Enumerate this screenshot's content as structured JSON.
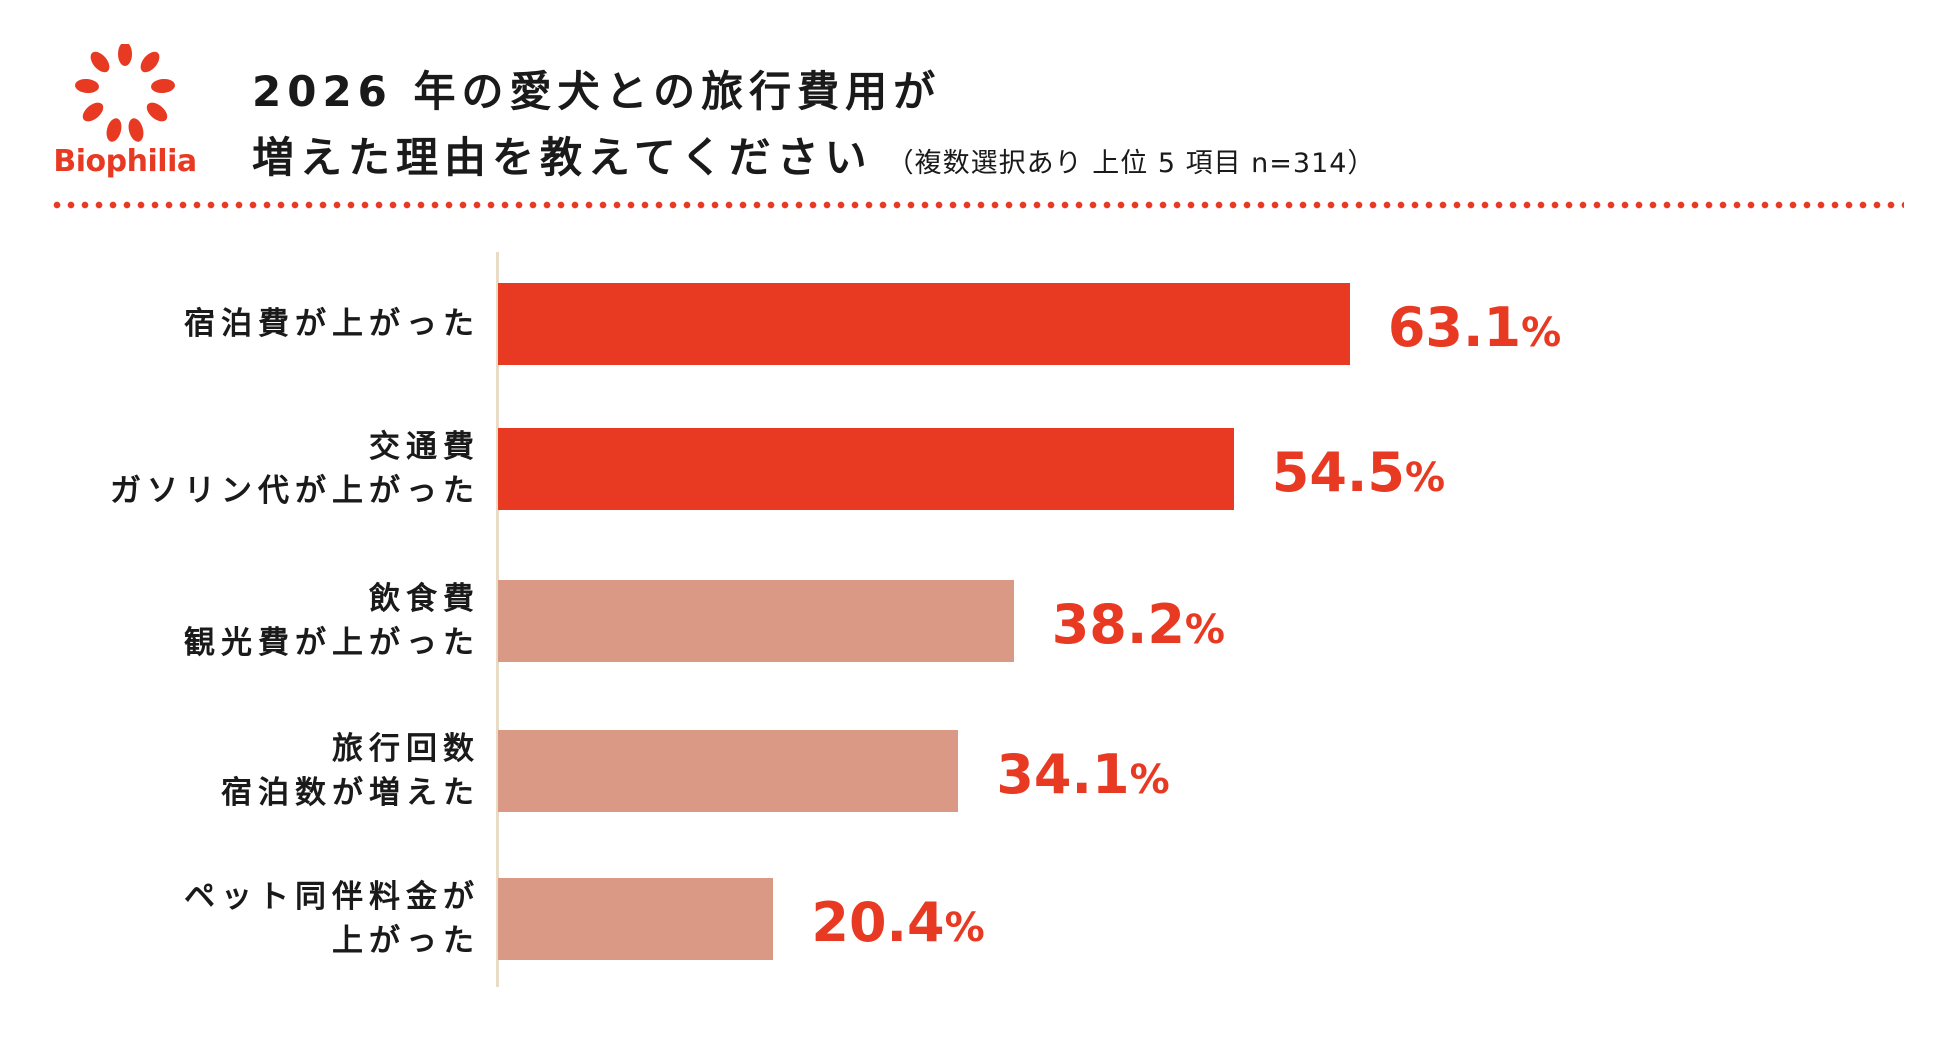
{
  "logo": {
    "text": "Biophilia",
    "color": "#e83a23"
  },
  "title": {
    "line1": "2026 年の愛犬との旅行費用が",
    "line2": "増えた理由を教えてください",
    "subtitle": "（複数選択あり 上位 5 項目 n=314）"
  },
  "chart_data": {
    "type": "bar",
    "orientation": "horizontal",
    "categories": [
      [
        "宿泊費が上がった"
      ],
      [
        "交通費",
        "ガソリン代が上がった"
      ],
      [
        "飲食費",
        "観光費が上がった"
      ],
      [
        "旅行回数",
        "宿泊数が増えた"
      ],
      [
        "ペット同伴料金が",
        "上がった"
      ]
    ],
    "values": [
      63.1,
      54.5,
      38.2,
      34.1,
      20.4
    ],
    "value_labels": [
      "63.1",
      "54.5",
      "38.2",
      "34.1",
      "20.4"
    ],
    "value_suffix": "%",
    "bar_colors": [
      "#e83a23",
      "#e83a23",
      "#d99985",
      "#d99985",
      "#d99985"
    ],
    "value_label_color": "#e83a23",
    "xlim": [
      0,
      100
    ],
    "grid": false,
    "legend": "none"
  }
}
